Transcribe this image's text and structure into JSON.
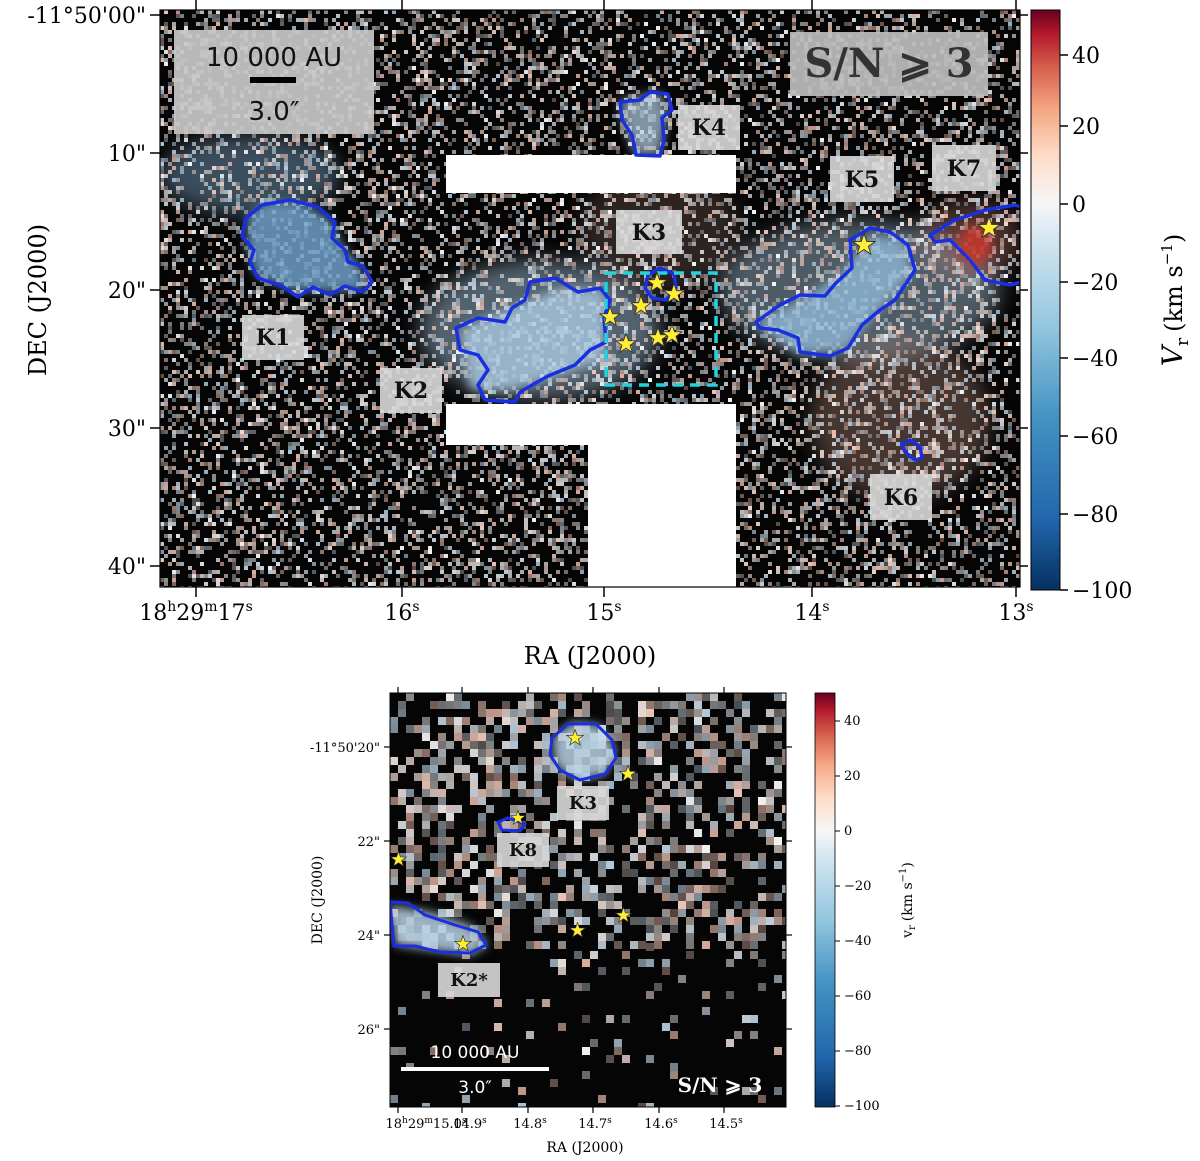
{
  "chart_data": [
    {
      "type": "heatmap",
      "panel": "top",
      "xlabel": "RA (J2000)",
      "ylabel": "DEC (J2000)",
      "x_ticks": [
        {
          "base": "18",
          "h": "h",
          "mid": "29",
          "m": "m",
          "sec": "17",
          "s": "s"
        },
        {
          "sec": "16",
          "s": "s"
        },
        {
          "sec": "15",
          "s": "s"
        },
        {
          "sec": "14",
          "s": "s"
        },
        {
          "sec": "13",
          "s": "s"
        }
      ],
      "y_ticks": [
        "-11°50'00\"",
        "10\"",
        "20\"",
        "30\"",
        "40\""
      ],
      "colorbar": {
        "label": "V",
        "label_sub": "r",
        "label_unit": "(km s",
        "label_exp": "−1",
        "label_close": ")",
        "ticks": [
          "40",
          "20",
          "0",
          "−20",
          "−40",
          "−60",
          "−80",
          "−100"
        ],
        "range": [
          -100,
          50
        ]
      },
      "badge": "S/N ⩾ 3",
      "scale_bar": {
        "top": "10 000 AU",
        "bottom": "3.0″"
      },
      "knots": [
        "K1",
        "K2",
        "K3",
        "K4",
        "K5",
        "K6",
        "K7"
      ],
      "colors": {
        "contour": "#1a2fe0",
        "star": "#ffee33",
        "box": "#22d3e0",
        "neg": "#2166ac",
        "pos": "#b2182b"
      }
    },
    {
      "type": "heatmap",
      "panel": "bottom",
      "xlabel": "RA (J2000)",
      "ylabel": "DEC (J2000)",
      "x_ticks": [
        {
          "base": "18",
          "h": "h",
          "mid": "29",
          "m": "m",
          "sec": "15.0",
          "s": "s"
        },
        {
          "sec": "14.9",
          "s": "s"
        },
        {
          "sec": "14.8",
          "s": "s"
        },
        {
          "sec": "14.7",
          "s": "s"
        },
        {
          "sec": "14.6",
          "s": "s"
        },
        {
          "sec": "14.5",
          "s": "s"
        }
      ],
      "y_ticks": [
        "-11°50'20\"",
        "22\"",
        "24\"",
        "26\""
      ],
      "colorbar": {
        "label": "v",
        "label_sub": "r",
        "label_unit": "(km s",
        "label_exp": "−1",
        "label_close": ")",
        "ticks": [
          "40",
          "20",
          "0",
          "−20",
          "−40",
          "−60",
          "−80",
          "−100"
        ],
        "range": [
          -100,
          50
        ]
      },
      "badge": "S/N ⩾ 3",
      "scale_bar": {
        "top": "10 000 AU",
        "bottom": "3.0″"
      },
      "knots": [
        "K3",
        "K8",
        "K2*"
      ]
    }
  ]
}
